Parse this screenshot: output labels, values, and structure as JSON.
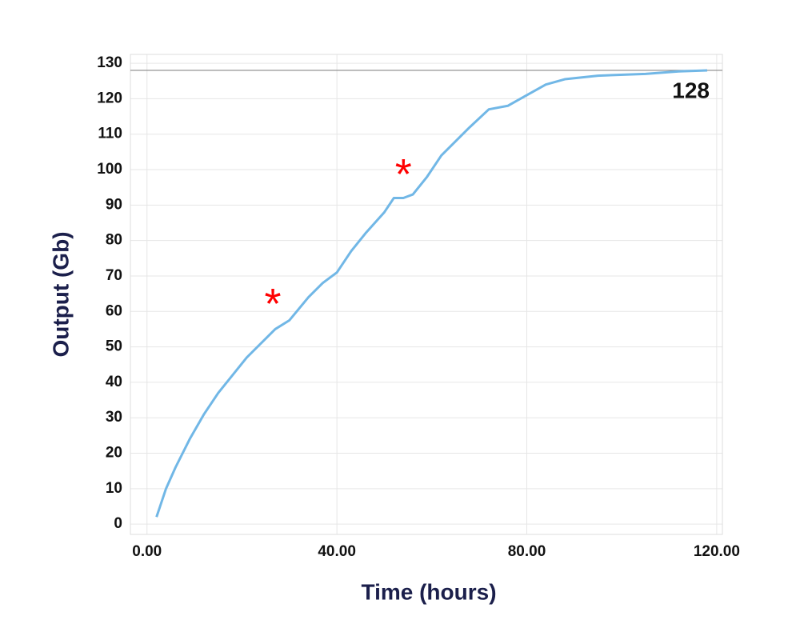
{
  "chart_data": {
    "type": "line",
    "x_label": "Time (hours)",
    "y_label": "Output (Gb)",
    "x": [
      2,
      4,
      6,
      9,
      12,
      15,
      18,
      21,
      24,
      27,
      30,
      34,
      37,
      40,
      43,
      46,
      50,
      52,
      54,
      56,
      59,
      62,
      65,
      68,
      72,
      76,
      80,
      84,
      88,
      95,
      105,
      112,
      118
    ],
    "series": [
      {
        "color": "#71b7e6",
        "values": [
          2,
          10,
          16,
          24,
          31,
          37,
          42,
          47,
          51,
          55,
          57.5,
          64,
          68,
          71,
          77,
          82,
          88,
          92,
          92,
          93,
          98,
          104,
          108,
          112,
          117,
          118,
          121,
          124,
          125.5,
          126.5,
          127,
          127.7,
          128
        ]
      }
    ],
    "xlim": [
      -3.5,
      121.2
    ],
    "ylim": [
      -2.9,
      132.5
    ],
    "xticks": [
      {
        "value": 0,
        "label": "0.00"
      },
      {
        "value": 40,
        "label": "40.00"
      },
      {
        "value": 80,
        "label": "80.00"
      },
      {
        "value": 120,
        "label": "120.00"
      }
    ],
    "yticks": [
      0,
      10,
      20,
      30,
      40,
      50,
      60,
      70,
      80,
      90,
      100,
      110,
      120,
      130
    ],
    "grid": true,
    "reference_line": {
      "value": 128,
      "label": "128",
      "color": "#888888"
    },
    "annotations": [
      {
        "text": "*",
        "x": 26.5,
        "y": 64,
        "color": "#ff0000"
      },
      {
        "text": "*",
        "x": 54,
        "y": 100.5,
        "color": "#ff0000"
      }
    ]
  }
}
